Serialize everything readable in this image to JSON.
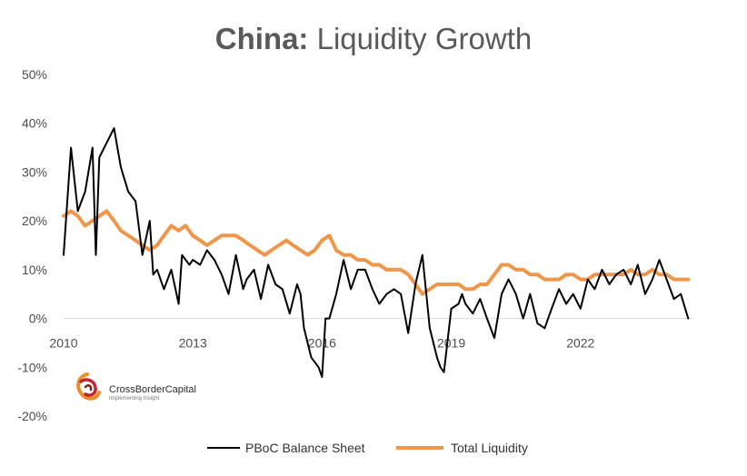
{
  "title": {
    "bold": "China:",
    "rest": " Liquidity Growth"
  },
  "logo": {
    "name": "CrossBorderCapital",
    "tagline": "Implementing Insight"
  },
  "chart_data": {
    "type": "line",
    "title": "China: Liquidity Growth",
    "xlabel": "",
    "ylabel": "",
    "xlim": [
      2010.0,
      2024.6
    ],
    "ylim": [
      -20,
      50
    ],
    "y_ticks": [
      50,
      40,
      30,
      20,
      10,
      0,
      -10,
      -20
    ],
    "y_tick_labels": [
      "50%",
      "40%",
      "30%",
      "20%",
      "10%",
      "0%",
      "-10%",
      "-20%"
    ],
    "x_ticks": [
      2010,
      2013,
      2016,
      2019,
      2022
    ],
    "x_tick_labels": [
      "2010",
      "2013",
      "2016",
      "2019",
      "2022"
    ],
    "grid": false,
    "legend": "bottom-center",
    "series": [
      {
        "name": "PBoC Balance Sheet",
        "color": "#000000",
        "x": [
          2010.0,
          2010.17,
          2010.33,
          2010.5,
          2010.67,
          2010.75,
          2010.83,
          2011.0,
          2011.17,
          2011.25,
          2011.33,
          2011.5,
          2011.67,
          2011.83,
          2012.0,
          2012.08,
          2012.17,
          2012.33,
          2012.5,
          2012.67,
          2012.75,
          2012.92,
          2013.0,
          2013.17,
          2013.33,
          2013.5,
          2013.67,
          2013.83,
          2014.0,
          2014.17,
          2014.25,
          2014.42,
          2014.58,
          2014.75,
          2014.92,
          2015.08,
          2015.25,
          2015.42,
          2015.5,
          2015.58,
          2015.75,
          2015.92,
          2016.0,
          2016.08,
          2016.17,
          2016.33,
          2016.5,
          2016.67,
          2016.83,
          2017.0,
          2017.17,
          2017.33,
          2017.5,
          2017.67,
          2017.83,
          2018.0,
          2018.17,
          2018.33,
          2018.5,
          2018.67,
          2018.75,
          2018.83,
          2019.0,
          2019.17,
          2019.25,
          2019.33,
          2019.5,
          2019.67,
          2019.83,
          2020.0,
          2020.17,
          2020.33,
          2020.5,
          2020.67,
          2020.83,
          2021.0,
          2021.17,
          2021.33,
          2021.5,
          2021.67,
          2021.83,
          2022.0,
          2022.17,
          2022.33,
          2022.5,
          2022.67,
          2022.83,
          2023.0,
          2023.17,
          2023.33,
          2023.5,
          2023.67,
          2023.83,
          2024.0,
          2024.17,
          2024.33,
          2024.5
        ],
        "values": [
          13,
          35,
          22,
          26,
          35,
          13,
          33,
          36,
          39,
          35,
          31,
          26,
          24,
          13,
          20,
          9,
          10,
          6,
          10,
          3,
          13,
          11,
          12,
          11,
          14,
          12,
          9,
          5,
          13,
          6,
          8,
          10,
          4,
          11,
          7,
          6,
          1,
          7,
          5,
          -2,
          -8,
          -10,
          -12,
          0,
          0,
          5,
          12,
          6,
          10,
          10,
          6,
          3,
          5,
          6,
          5,
          -3,
          7,
          13,
          -2,
          -8,
          -10,
          -11,
          2,
          3,
          5,
          3,
          1,
          4,
          0,
          -4,
          5,
          8,
          5,
          0,
          5,
          -1,
          -2,
          2,
          6,
          3,
          5,
          2,
          8,
          6,
          10,
          7,
          9,
          10,
          7,
          11,
          5,
          8,
          12,
          8,
          4,
          5,
          0
        ]
      },
      {
        "name": "Total Liquidity",
        "color": "#F0964A",
        "x": [
          2010.0,
          2010.17,
          2010.33,
          2010.5,
          2010.67,
          2010.83,
          2011.0,
          2011.17,
          2011.33,
          2011.5,
          2011.67,
          2011.83,
          2012.0,
          2012.17,
          2012.33,
          2012.5,
          2012.67,
          2012.83,
          2013.0,
          2013.17,
          2013.33,
          2013.5,
          2013.67,
          2013.83,
          2014.0,
          2014.17,
          2014.33,
          2014.5,
          2014.67,
          2014.83,
          2015.0,
          2015.17,
          2015.33,
          2015.5,
          2015.67,
          2015.83,
          2016.0,
          2016.17,
          2016.33,
          2016.5,
          2016.67,
          2016.83,
          2017.0,
          2017.17,
          2017.33,
          2017.5,
          2017.67,
          2017.83,
          2018.0,
          2018.17,
          2018.33,
          2018.5,
          2018.67,
          2018.83,
          2019.0,
          2019.17,
          2019.33,
          2019.5,
          2019.67,
          2019.83,
          2020.0,
          2020.17,
          2020.33,
          2020.5,
          2020.67,
          2020.83,
          2021.0,
          2021.17,
          2021.33,
          2021.5,
          2021.67,
          2021.83,
          2022.0,
          2022.17,
          2022.33,
          2022.5,
          2022.67,
          2022.83,
          2023.0,
          2023.17,
          2023.33,
          2023.5,
          2023.67,
          2023.83,
          2024.0,
          2024.17,
          2024.33,
          2024.5
        ],
        "values": [
          21,
          22,
          21,
          19,
          20,
          21,
          22,
          20,
          18,
          17,
          16,
          15,
          14,
          15,
          17,
          19,
          18,
          19,
          17,
          16,
          15,
          16,
          17,
          17,
          17,
          16,
          15,
          14,
          13,
          14,
          15,
          16,
          15,
          14,
          13,
          14,
          16,
          17,
          14,
          13,
          13,
          12,
          12,
          11,
          11,
          10,
          10,
          10,
          9,
          7,
          5,
          6,
          7,
          7,
          7,
          7,
          6,
          6,
          7,
          7,
          9,
          11,
          11,
          10,
          10,
          9,
          9,
          8,
          8,
          8,
          9,
          9,
          8,
          8,
          9,
          9,
          9,
          9,
          9,
          10,
          9,
          9,
          10,
          9,
          9,
          8,
          8,
          8
        ]
      }
    ]
  }
}
